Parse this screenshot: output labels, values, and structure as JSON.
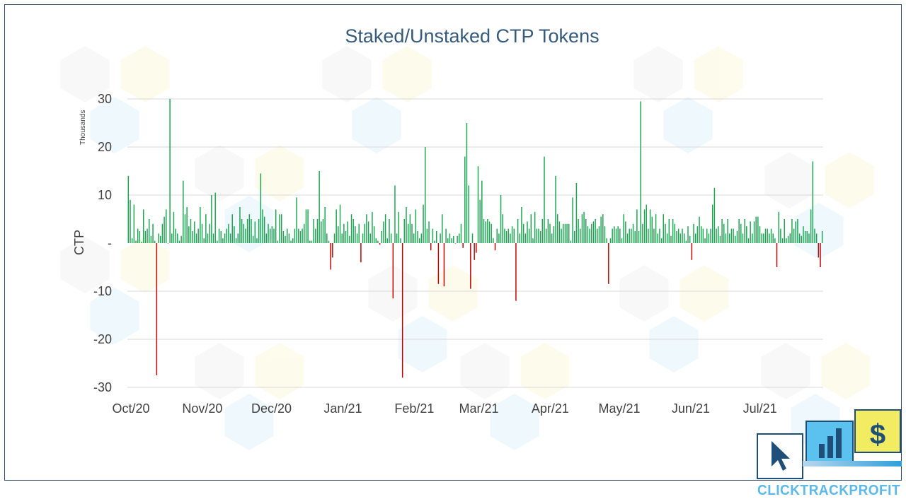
{
  "chart_data": {
    "type": "bar",
    "title": "Staked/Unstaked CTP Tokens",
    "xlabel": "",
    "ylabel": "CTP",
    "y_unit_label": "Thousands",
    "ylim": [
      -30,
      30
    ],
    "y_ticks": [
      {
        "value": 30,
        "label": "30"
      },
      {
        "value": 20,
        "label": "20"
      },
      {
        "value": 10,
        "label": "10"
      },
      {
        "value": 0,
        "label": "-"
      },
      {
        "value": -10,
        "label": "-10"
      },
      {
        "value": -20,
        "label": "-20"
      },
      {
        "value": -30,
        "label": "-30"
      }
    ],
    "grid": true,
    "x_start": "2020-10-01",
    "x_end": "2021-07-30",
    "x_ticks": [
      {
        "date": "2020-10-01",
        "label": "Oct/20"
      },
      {
        "date": "2020-11-01",
        "label": "Nov/20"
      },
      {
        "date": "2020-12-01",
        "label": "Dec/20"
      },
      {
        "date": "2021-01-01",
        "label": "Jan/21"
      },
      {
        "date": "2021-02-01",
        "label": "Feb/21"
      },
      {
        "date": "2021-03-01",
        "label": "Mar/21"
      },
      {
        "date": "2021-04-01",
        "label": "Apr/21"
      },
      {
        "date": "2021-05-01",
        "label": "May/21"
      },
      {
        "date": "2021-06-01",
        "label": "Jun/21"
      },
      {
        "date": "2021-07-01",
        "label": "Jul/21"
      }
    ],
    "colors": {
      "positive": "#1aa551",
      "negative": "#c00000",
      "grid": "#d9d9d9",
      "title": "#355a7a"
    },
    "series": [
      {
        "values": [
          14,
          9,
          1,
          8,
          0.5,
          3,
          2.5,
          0.3,
          7,
          2.5,
          3,
          5,
          1.5,
          4,
          0.5,
          -27.5,
          2,
          1.5,
          4,
          5.5,
          7,
          0,
          30,
          2,
          6.5,
          3,
          2,
          0.5,
          1.5,
          13,
          6,
          7.5,
          3.5,
          5,
          2.5,
          4.5,
          2,
          3,
          7.5,
          4,
          1,
          6,
          2,
          4,
          10,
          2,
          10.5,
          0.5,
          3,
          2.5,
          1,
          2,
          3,
          4,
          2,
          6,
          3.5,
          1,
          2,
          7.5,
          5,
          4,
          3,
          5,
          6,
          5,
          1.5,
          4.5,
          1,
          5,
          14.5,
          7,
          5.5,
          2,
          4,
          3,
          3.5,
          3,
          7,
          0.5,
          6,
          6,
          2.5,
          1.5,
          3,
          2,
          0.5,
          1,
          3,
          9.5,
          3,
          2.5,
          3,
          4,
          7,
          7,
          0.5,
          0.5,
          5,
          3,
          5,
          15,
          4.5,
          5,
          7.5,
          2,
          0.5,
          -5.5,
          -3,
          2,
          7,
          3.5,
          8,
          2,
          4,
          2.5,
          4.5,
          1.5,
          6,
          5,
          3.5,
          2,
          4,
          -4,
          2,
          4,
          6,
          4.5,
          2,
          6.5,
          3.5,
          1,
          0.5,
          -0.3,
          2.5,
          4.5,
          6,
          1,
          5,
          2,
          -11.5,
          12,
          2,
          6.5,
          1,
          -28,
          5,
          7.5,
          4,
          6,
          4,
          2,
          7,
          2.5,
          1,
          2,
          8,
          20,
          3,
          4.5,
          -1.5,
          3,
          0.5,
          2.5,
          -8.5,
          2,
          6,
          -9,
          3,
          1,
          2,
          1,
          1.5,
          0,
          1.5,
          2,
          4,
          -1,
          18,
          25,
          12,
          -9.5,
          2,
          -3.5,
          -2,
          16,
          9,
          13,
          5,
          4.5,
          5,
          4.5,
          4,
          1,
          -1.5,
          3,
          2,
          10,
          6,
          3,
          2.5,
          3,
          2,
          3.5,
          3,
          -12,
          5,
          2,
          7.5,
          4,
          2,
          4.5,
          3,
          6,
          1,
          6.5,
          3,
          3,
          2.5,
          5,
          18,
          3,
          5,
          4,
          2,
          3.5,
          14,
          6,
          4.5,
          3,
          4,
          4,
          4,
          4,
          0.5,
          9.5,
          2.5,
          12.5,
          5,
          3,
          6,
          6.5,
          5,
          3.5,
          3,
          4,
          4.5,
          5,
          3,
          3.5,
          5.5,
          6,
          3.5,
          1,
          -8.5,
          1,
          3,
          3.5,
          3,
          3.5,
          3,
          1,
          6,
          4.5,
          2,
          3,
          3,
          4,
          2.5,
          7,
          2.5,
          29.5,
          4,
          7,
          8,
          3,
          7,
          5.5,
          3,
          6,
          2,
          3,
          1,
          6,
          4,
          2,
          5,
          1.5,
          5,
          4,
          2.5,
          3,
          2,
          3,
          2,
          0.5,
          3.5,
          1.5,
          -3.5,
          4,
          2,
          3.5,
          5.5,
          3.5,
          3,
          1,
          3,
          2,
          3,
          8,
          11.5,
          3,
          3.5,
          1.5,
          5,
          4,
          2,
          5,
          2,
          3,
          3,
          1.5,
          2.5,
          5,
          4,
          2,
          5,
          3.5,
          1,
          4.5,
          2,
          4.5,
          5.5,
          5.5,
          3.5,
          2,
          2,
          3,
          3,
          2,
          3,
          2,
          1,
          -5,
          6.5,
          3,
          1,
          5,
          1,
          1.5,
          2,
          5,
          3,
          4.5,
          5,
          2,
          1.5,
          3.5,
          2.5,
          2.5,
          2,
          7,
          17,
          3,
          2,
          -3,
          -5,
          2.5
        ]
      }
    ]
  },
  "brand": {
    "name": "CLICKTRACKPROFIT"
  }
}
